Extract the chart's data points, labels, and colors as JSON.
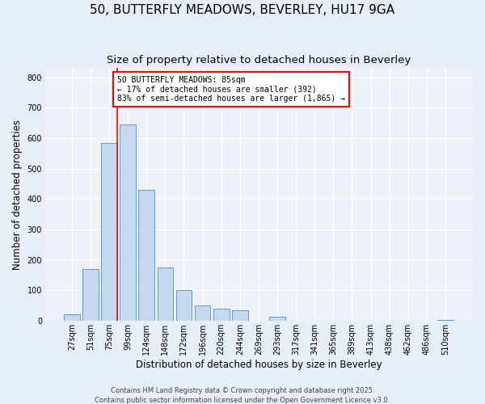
{
  "title": "50, BUTTERFLY MEADOWS, BEVERLEY, HU17 9GA",
  "subtitle": "Size of property relative to detached houses in Beverley",
  "xlabel": "Distribution of detached houses by size in Beverley",
  "ylabel": "Number of detached properties",
  "bar_labels": [
    "27sqm",
    "51sqm",
    "75sqm",
    "99sqm",
    "124sqm",
    "148sqm",
    "172sqm",
    "196sqm",
    "220sqm",
    "244sqm",
    "269sqm",
    "293sqm",
    "317sqm",
    "341sqm",
    "365sqm",
    "389sqm",
    "413sqm",
    "438sqm",
    "462sqm",
    "486sqm",
    "510sqm"
  ],
  "bar_values": [
    20,
    170,
    585,
    645,
    430,
    175,
    100,
    50,
    40,
    33,
    0,
    12,
    0,
    0,
    0,
    0,
    0,
    0,
    0,
    0,
    2
  ],
  "bar_color": "#c5d8ed",
  "bar_edge_color": "#5b9bd5",
  "vline_x": 2.425,
  "vline_color": "red",
  "annotation_title": "50 BUTTERFLY MEADOWS: 85sqm",
  "annotation_line1": "← 17% of detached houses are smaller (392)",
  "annotation_line2": "83% of semi-detached houses are larger (1,865) →",
  "annotation_box_color": "white",
  "annotation_box_edgecolor": "red",
  "ylim": [
    0,
    830
  ],
  "yticks": [
    0,
    100,
    200,
    300,
    400,
    500,
    600,
    700,
    800
  ],
  "footer1": "Contains HM Land Registry data © Crown copyright and database right 2025.",
  "footer2": "Contains public sector information licensed under the Open Government Licence v3.0.",
  "bg_color": "#e8eef7",
  "plot_bg_color": "#edf2f9",
  "title_fontsize": 11,
  "subtitle_fontsize": 9.5,
  "tick_fontsize": 7,
  "ylabel_fontsize": 8.5,
  "xlabel_fontsize": 8.5,
  "footer_fontsize": 6,
  "annotation_fontsize": 7
}
